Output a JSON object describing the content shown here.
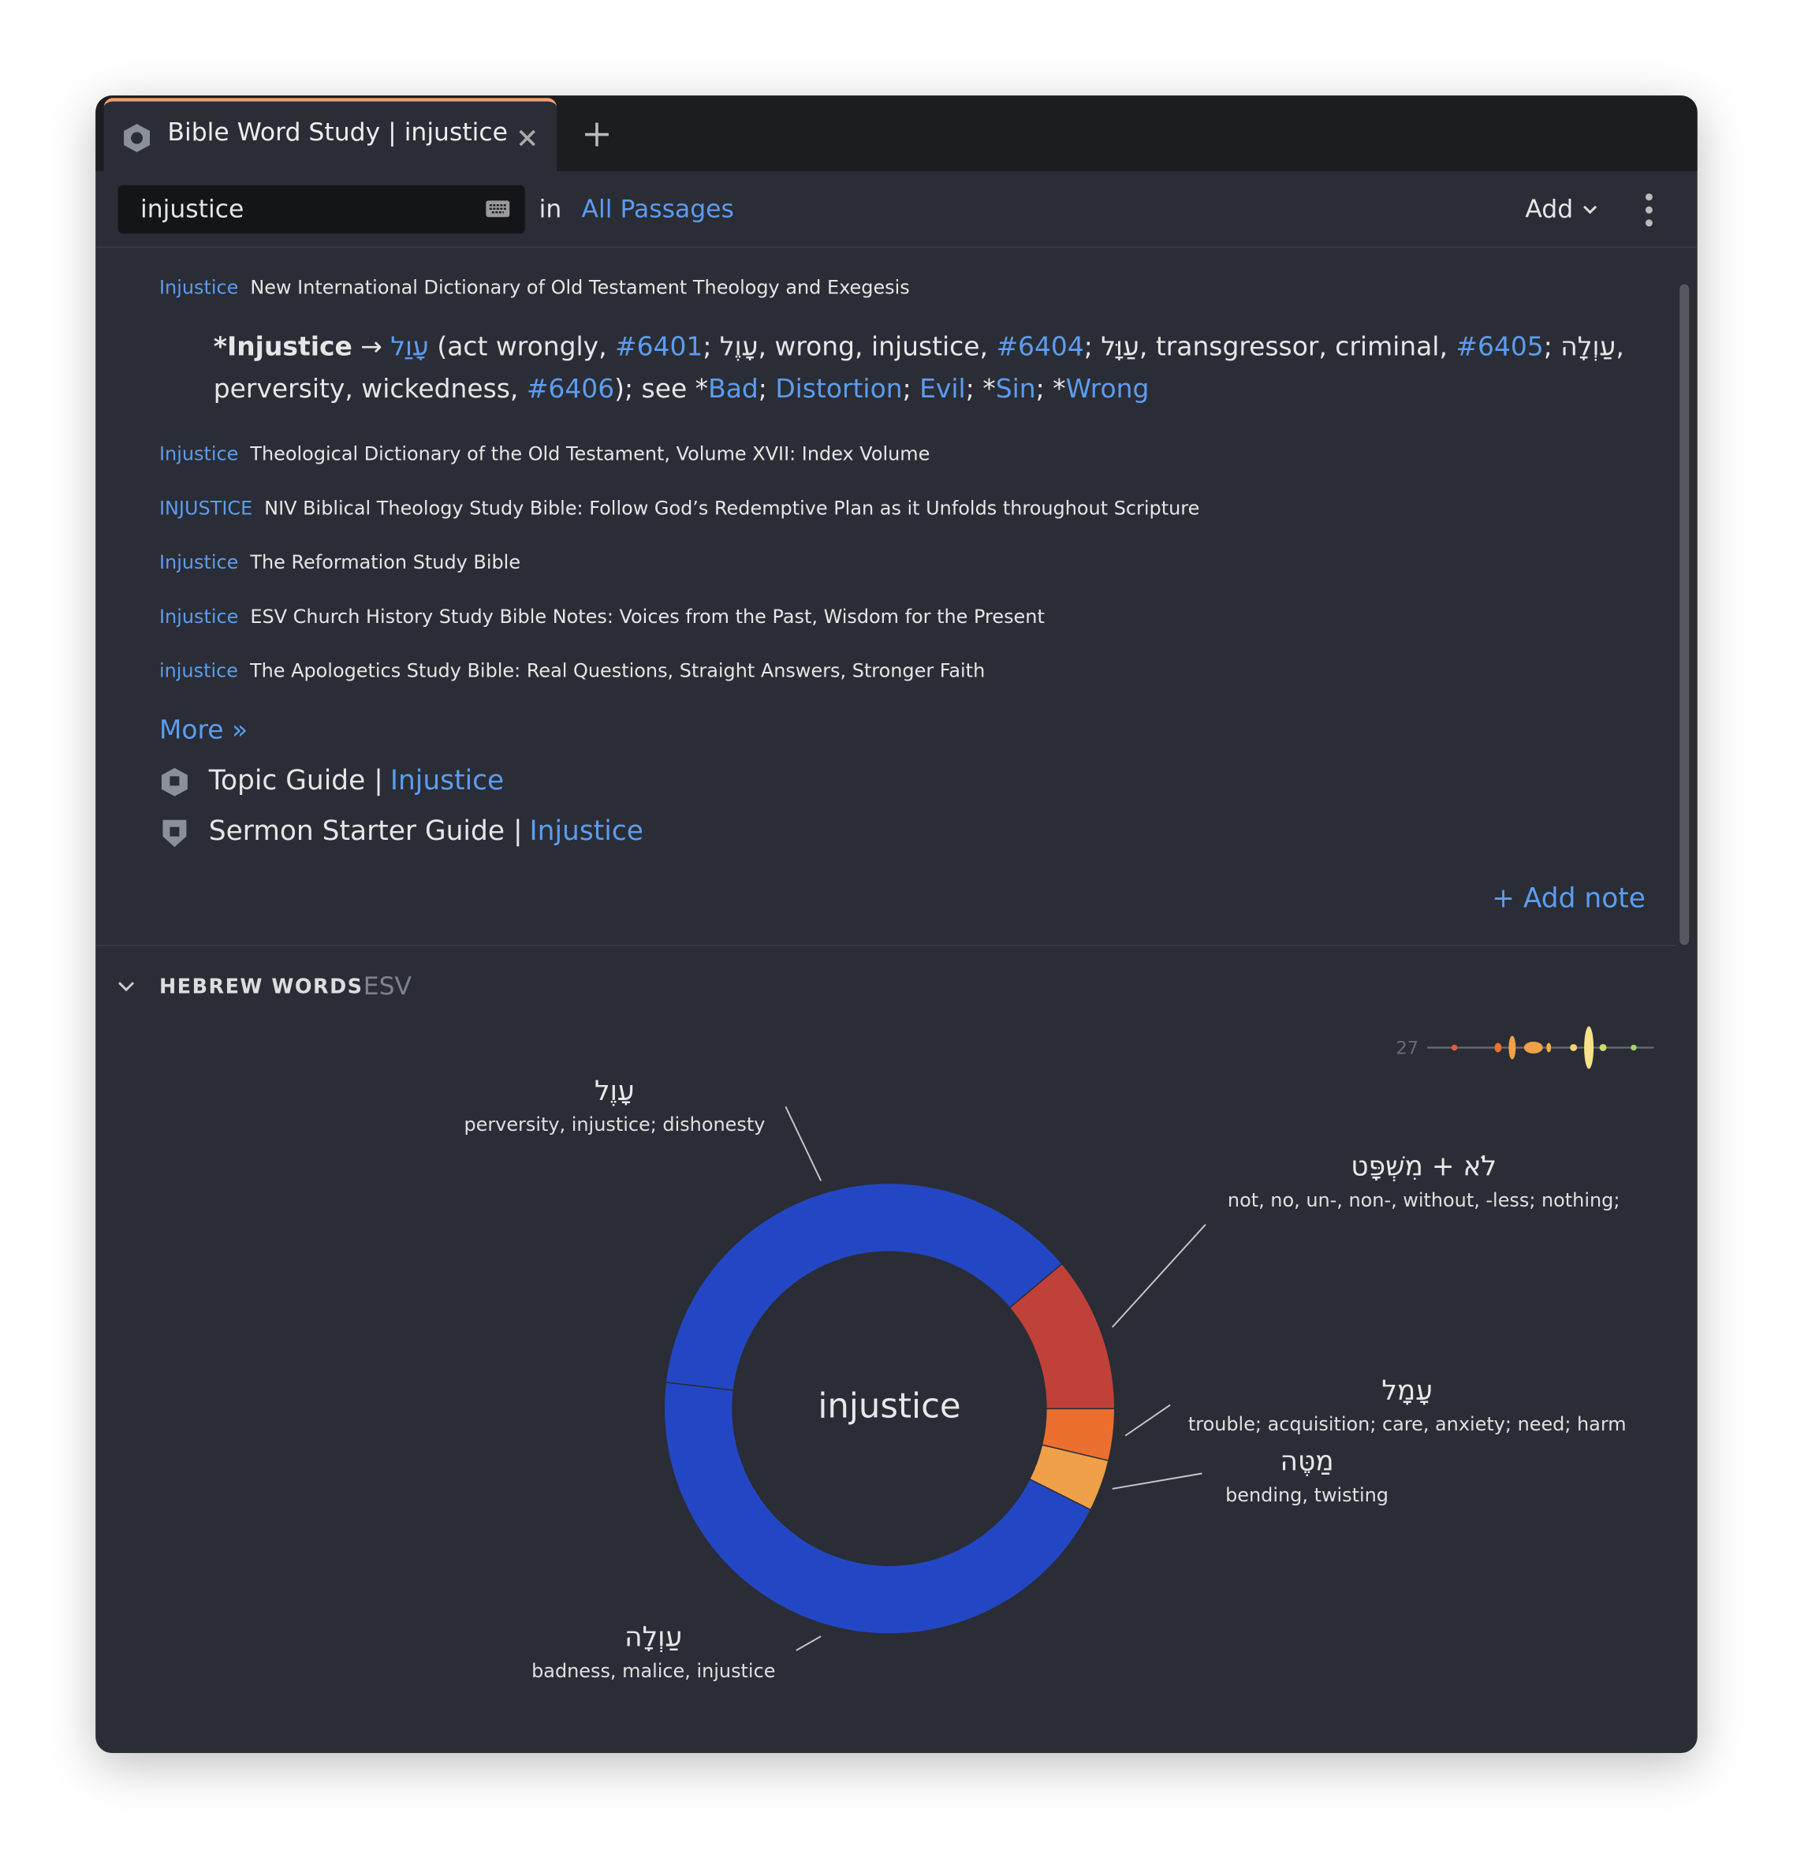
{
  "tab": {
    "title": "Bible Word Study | injustice"
  },
  "search": {
    "query": "injustice",
    "in_label": "in",
    "scope": "All Passages",
    "add_button": "Add"
  },
  "results": [
    {
      "term": "Injustice",
      "source": "New International Dictionary of Old Testament Theology and Exegesis"
    },
    {
      "term": "Injustice",
      "source": "Theological Dictionary of the Old Testament, Volume XVII: Index Volume"
    },
    {
      "term": "INJUSTICE",
      "source": "NIV Biblical Theology Study Bible: Follow God’s Redemptive Plan as it Unfolds throughout Scripture"
    },
    {
      "term": "Injustice",
      "source": "The Reformation Study Bible"
    },
    {
      "term": "Injustice",
      "source": "ESV Church History Study Bible Notes: Voices from the Past, Wisdom for the Present"
    },
    {
      "term": "injustice",
      "source": "The Apologetics Study Bible: Real Questions, Straight Answers, Stronger Faith"
    }
  ],
  "entry": [
    {
      "text": "*Injustice",
      "kind": "bold"
    },
    {
      "text": " → ",
      "kind": "plain"
    },
    {
      "text": "עָוַל",
      "kind": "link"
    },
    {
      "text": " (act wrongly, ",
      "kind": "plain"
    },
    {
      "text": "#6401",
      "kind": "link"
    },
    {
      "text": "; ",
      "kind": "plain"
    },
    {
      "text": "עָוֶל",
      "kind": "plain"
    },
    {
      "text": ", wrong, injustice, ",
      "kind": "plain"
    },
    {
      "text": "#6404",
      "kind": "link"
    },
    {
      "text": "; ",
      "kind": "plain"
    },
    {
      "text": "עַוָּל",
      "kind": "plain"
    },
    {
      "text": ", transgressor, criminal, ",
      "kind": "plain"
    },
    {
      "text": "#6405",
      "kind": "link"
    },
    {
      "text": "; ",
      "kind": "plain"
    },
    {
      "text": "עַוְלָה",
      "kind": "plain"
    },
    {
      "text": ", perversity, wickedness, ",
      "kind": "plain"
    },
    {
      "text": "#6406",
      "kind": "link"
    },
    {
      "text": "); see *",
      "kind": "plain"
    },
    {
      "text": "Bad",
      "kind": "link"
    },
    {
      "text": "; ",
      "kind": "plain"
    },
    {
      "text": "Distortion",
      "kind": "link"
    },
    {
      "text": "; ",
      "kind": "plain"
    },
    {
      "text": "Evil",
      "kind": "link"
    },
    {
      "text": "; *",
      "kind": "plain"
    },
    {
      "text": "Sin",
      "kind": "link"
    },
    {
      "text": "; *",
      "kind": "plain"
    },
    {
      "text": "Wrong",
      "kind": "link"
    }
  ],
  "more": "More »",
  "guides": [
    {
      "label": "Topic Guide |",
      "link": "Injustice"
    },
    {
      "label": "Sermon Starter Guide |",
      "link": "Injustice"
    }
  ],
  "add_note": "+ Add note",
  "section": {
    "title": "HEBREW WORDS",
    "version": "ESV",
    "sparkline_count": 27
  },
  "chart_data": {
    "type": "donut",
    "center_label": "injustice",
    "categories": [
      "עָוֶל",
      "לֹא + מִשְׁפָּט",
      "עָמָל",
      "מַטֶּה",
      "עַוְלָה"
    ],
    "glosses": [
      "perversity, injustice; dishonesty",
      "not, no, un-, non-, without, -less; nothing;",
      "trouble; acquisition; care, anxiety; need; harm",
      "bending, twisting",
      "badness, malice, injustice"
    ],
    "values": [
      10,
      3,
      1,
      1,
      12
    ],
    "colors": [
      "#2347c4",
      "#c0413a",
      "#ec6f30",
      "#f0a048",
      "#2347c4"
    ]
  }
}
